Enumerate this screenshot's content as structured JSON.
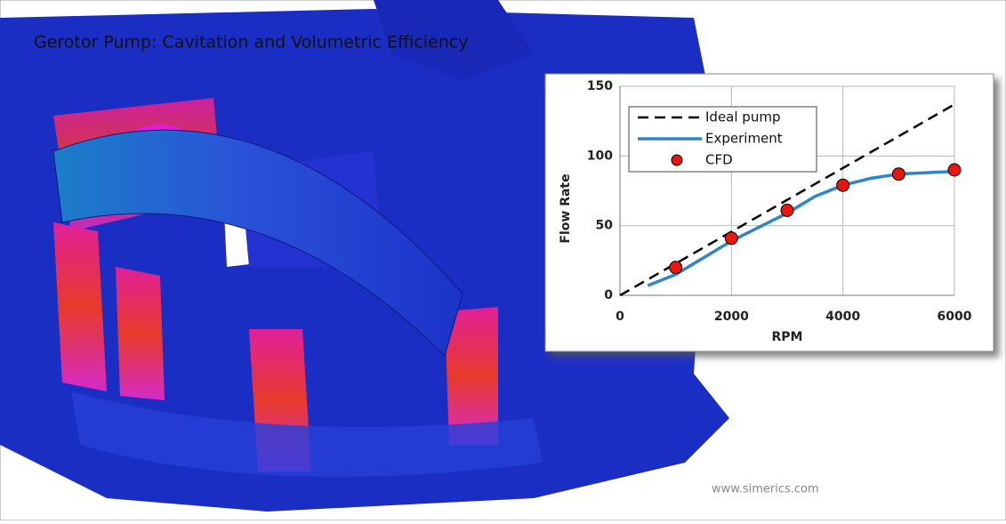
{
  "title": "Gerotor Pump: Cavitation and Volumetric Efficiency",
  "watermark": "www.simerics.com",
  "chart_data": {
    "type": "line",
    "x_label": "RPM",
    "y_label": "Flow Rate",
    "xlim": [
      0,
      6000
    ],
    "xticks": [
      0,
      2000,
      4000,
      6000
    ],
    "ylim": [
      0,
      150
    ],
    "yticks": [
      0,
      50,
      100,
      150
    ],
    "grid": true,
    "legend": "upper left",
    "series": [
      {
        "name": "Ideal pump",
        "color": "#000000",
        "dashed": true,
        "marker": false,
        "x": [
          0,
          6000
        ],
        "values": [
          0,
          137
        ]
      },
      {
        "name": "Experiment",
        "color": "#2e86c8",
        "dashed": false,
        "marker": false,
        "x": [
          500,
          1000,
          1500,
          2000,
          2500,
          3000,
          3500,
          4000,
          4500,
          5000,
          5500,
          6000
        ],
        "values": [
          7,
          15,
          27,
          39,
          49,
          59,
          71,
          79,
          84,
          87,
          88,
          89
        ]
      },
      {
        "name": "CFD",
        "color": "#e8160c",
        "dashed": false,
        "marker": true,
        "x": [
          1000,
          2000,
          3000,
          4000,
          5000,
          6000
        ],
        "values": [
          20,
          41,
          61,
          79,
          87,
          90
        ]
      }
    ]
  }
}
